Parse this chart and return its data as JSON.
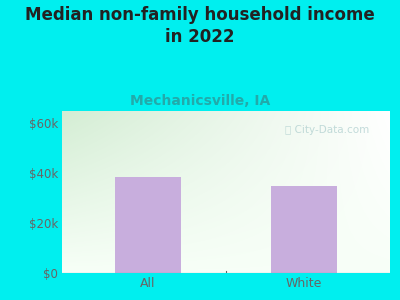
{
  "title": "Median non-family household income\nin 2022",
  "subtitle": "Mechanicsville, IA",
  "categories": [
    "All",
    "White"
  ],
  "values": [
    38500,
    35000
  ],
  "bar_color": "#c8aedd",
  "background_color": "#00efef",
  "plot_bg_color_top_left": "#d4edd4",
  "plot_bg_color_bottom_right": "#f8fff8",
  "yticks": [
    0,
    20000,
    40000,
    60000
  ],
  "ytick_labels": [
    "$0",
    "$20k",
    "$40k",
    "$60k"
  ],
  "ylim": [
    0,
    65000
  ],
  "title_fontsize": 12,
  "subtitle_fontsize": 10,
  "subtitle_color": "#22aaaa",
  "tick_color": "#666666",
  "watermark": "City-Data.com",
  "title_color": "#222222"
}
